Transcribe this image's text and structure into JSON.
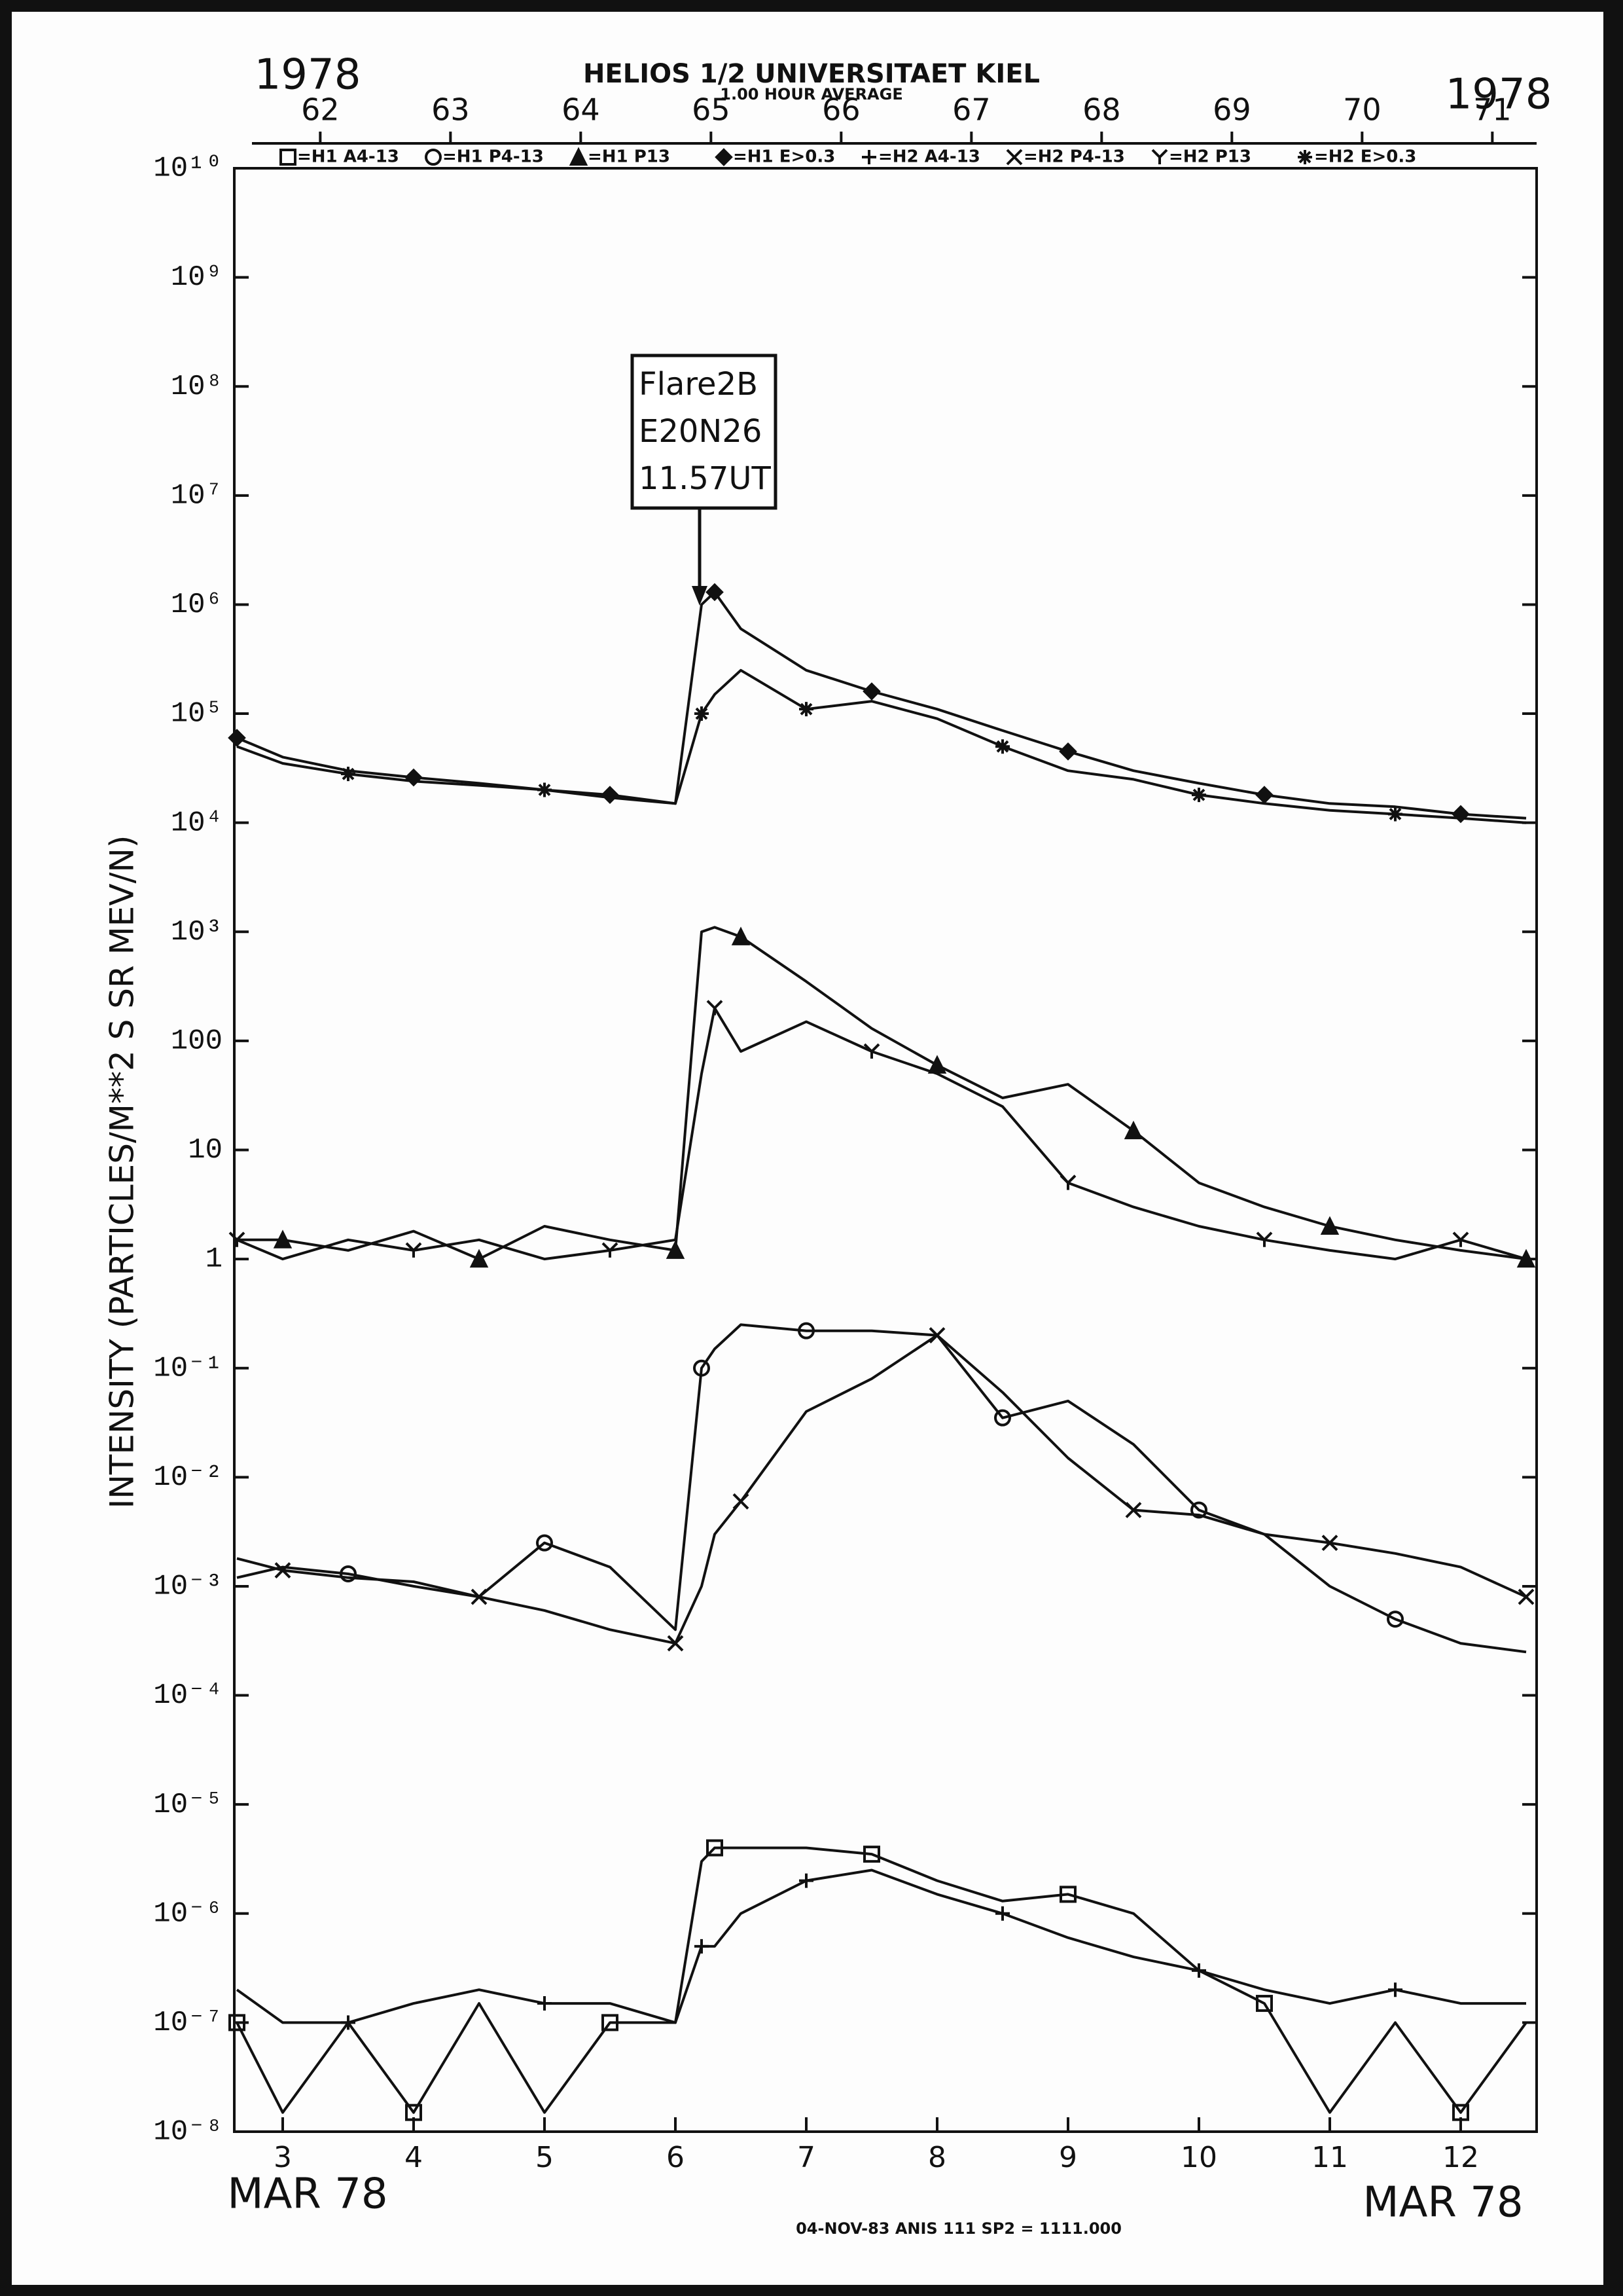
{
  "chart_data": {
    "type": "line",
    "title": "HELIOS 1/2  UNIVERSITAET KIEL",
    "subtitle": "1.00 HOUR AVERAGE",
    "year_left": "1978",
    "year_right": "1978",
    "x_label_left": "MAR 78",
    "x_label_right": "MAR 78",
    "y_label": "INTENSITY (PARTICLES/M**2 S SR MEV/N)",
    "footer": "04-NOV-83 ANIS 111 SP2 = 1111.000",
    "annotation": [
      "Flare2B",
      "E20N26",
      "11.57UT"
    ],
    "log_y": true,
    "color": "#111111",
    "xlim": [
      2.63,
      12.58
    ],
    "xticks": [
      3,
      4,
      5,
      6,
      7,
      8,
      9,
      10,
      11,
      12
    ],
    "x2lim": [
      61.34,
      71.34
    ],
    "x2ticks": [
      62,
      63,
      64,
      65,
      66,
      67,
      68,
      69,
      70,
      71
    ],
    "ylim": [
      1e-08,
      10000000000.0
    ],
    "yticks": [
      {
        "value": 10000000000.0,
        "label": "10¹⁰"
      },
      {
        "value": 1000000000.0,
        "label": "10⁹"
      },
      {
        "value": 100000000.0,
        "label": "10⁸"
      },
      {
        "value": 10000000.0,
        "label": "10⁷"
      },
      {
        "value": 1000000.0,
        "label": "10⁶"
      },
      {
        "value": 100000.0,
        "label": "10⁵"
      },
      {
        "value": 10000.0,
        "label": "10⁴"
      },
      {
        "value": 1000,
        "label": "10³"
      },
      100,
      10,
      1,
      {
        "value": 0.1,
        "label": "10⁻¹"
      },
      {
        "value": 0.01,
        "label": "10⁻²"
      },
      {
        "value": 0.001,
        "label": "10⁻³"
      },
      {
        "value": 0.0001,
        "label": "10⁻⁴"
      },
      {
        "value": 1e-05,
        "label": "10⁻⁵"
      },
      {
        "value": 1e-06,
        "label": "10⁻⁶"
      },
      {
        "value": 1e-07,
        "label": "10⁻⁷"
      },
      {
        "value": 1e-08,
        "label": "10⁻⁸"
      }
    ],
    "x": [
      2.65,
      3,
      3.5,
      4,
      4.5,
      5,
      5.5,
      6,
      6.2,
      6.3,
      6.5,
      7,
      7.5,
      8,
      8.5,
      9,
      9.5,
      10,
      10.5,
      11,
      11.5,
      12,
      12.5
    ],
    "series": [
      {
        "name": "=H1 A4-13",
        "marker": "square",
        "values": [
          1e-07,
          1.5e-08,
          1e-07,
          1.5e-08,
          1.5e-07,
          1.5e-08,
          1e-07,
          1e-07,
          3e-06,
          4e-06,
          4e-06,
          4e-06,
          3.5e-06,
          2e-06,
          1.3e-06,
          1.5e-06,
          1e-06,
          3e-07,
          1.5e-07,
          1.5e-08,
          1e-07,
          1.5e-08,
          1e-07
        ]
      },
      {
        "name": "=H1 P4-13",
        "marker": "circle",
        "values": [
          0.0012,
          0.0015,
          0.0013,
          0.001,
          0.0008,
          0.0025,
          0.0015,
          0.0004,
          0.1,
          0.15,
          0.25,
          0.22,
          0.22,
          0.2,
          0.035,
          0.05,
          0.02,
          0.005,
          0.003,
          0.001,
          0.0005,
          0.0003,
          0.00025
        ]
      },
      {
        "name": "=H1 P13",
        "marker": "triangle",
        "values": [
          1.5,
          1.5,
          1.2,
          1.8,
          1,
          2,
          1.5,
          1.2,
          1000,
          1100,
          900,
          350,
          130,
          60,
          30,
          40,
          15,
          5,
          3,
          2,
          1.5,
          1.2,
          1
        ]
      },
      {
        "name": "=H1 E>0.3",
        "marker": "diamond",
        "values": [
          60000,
          40000,
          30000,
          26000,
          23000,
          20000,
          18000,
          15000,
          1000000,
          1300000,
          600000,
          250000,
          160000,
          110000,
          70000,
          45000,
          30000,
          23000,
          18000,
          15000,
          14000,
          12000,
          11000
        ]
      },
      {
        "name": "=H2 A4-13",
        "marker": "plus",
        "values": [
          2e-07,
          1e-07,
          1e-07,
          1.5e-07,
          2e-07,
          1.5e-07,
          1.5e-07,
          1e-07,
          5e-07,
          5e-07,
          1e-06,
          2e-06,
          2.5e-06,
          1.5e-06,
          1e-06,
          6e-07,
          4e-07,
          3e-07,
          2e-07,
          1.5e-07,
          2e-07,
          1.5e-07,
          1.5e-07
        ]
      },
      {
        "name": "=H2 P4-13",
        "marker": "cross",
        "values": [
          0.0018,
          0.0014,
          0.0012,
          0.0011,
          0.0008,
          0.0006,
          0.0004,
          0.0003,
          0.001,
          0.003,
          0.006,
          0.04,
          0.08,
          0.2,
          0.06,
          0.015,
          0.005,
          0.0045,
          0.003,
          0.0025,
          0.002,
          0.0015,
          0.0008
        ]
      },
      {
        "name": "=H2 P13",
        "marker": "y",
        "values": [
          1.5,
          1,
          1.5,
          1.2,
          1.5,
          1,
          1.2,
          1.5,
          50,
          200,
          80,
          150,
          80,
          50,
          25,
          5,
          3,
          2,
          1.5,
          1.2,
          1,
          1.5,
          1
        ]
      },
      {
        "name": "=H2 E>0.3",
        "marker": "star",
        "values": [
          50000,
          35000,
          28000,
          24000,
          22000,
          20000,
          17000,
          15000,
          100000,
          150000,
          250000,
          110000,
          130000,
          90000,
          50000,
          30000,
          25000,
          18000,
          15000,
          13000,
          12000,
          11000,
          10000
        ]
      }
    ]
  }
}
